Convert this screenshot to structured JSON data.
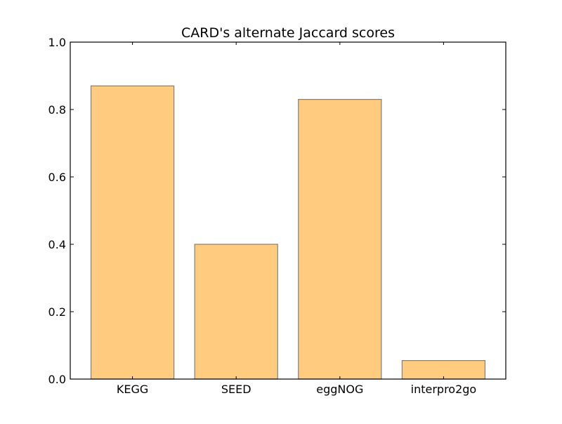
{
  "chart_data": {
    "type": "bar",
    "title": "CARD's alternate Jaccard scores",
    "xlabel": "",
    "ylabel": "",
    "categories": [
      "KEGG",
      "SEED",
      "eggNOG",
      "interpro2go"
    ],
    "values": [
      0.87,
      0.4,
      0.83,
      0.055
    ],
    "ylim": [
      0,
      1.0
    ],
    "yticks": [
      "0.0",
      "0.2",
      "0.4",
      "0.6",
      "0.8",
      "1.0"
    ],
    "grid": false,
    "legend": "none",
    "bar_color": "#ffcc7f",
    "bar_edge_color": "#7f7f7f"
  }
}
